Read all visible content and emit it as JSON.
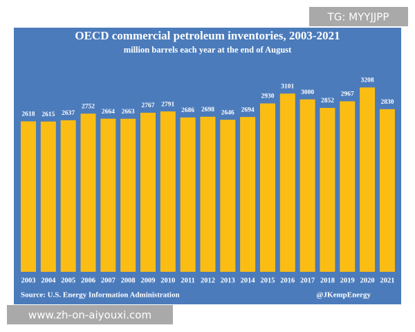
{
  "chart_data": {
    "type": "bar",
    "title": "OECD commercial petroleum inventories, 2003-2021",
    "subtitle": "million barrels each year at the end of August",
    "categories": [
      "2003",
      "2004",
      "2005",
      "2006",
      "2007",
      "2008",
      "2009",
      "2010",
      "2011",
      "2012",
      "2013",
      "2014",
      "2015",
      "2016",
      "2017",
      "2018",
      "2019",
      "2020",
      "2021"
    ],
    "values": [
      2618,
      2615,
      2637,
      2752,
      2664,
      2663,
      2767,
      2791,
      2686,
      2698,
      2646,
      2694,
      2930,
      3101,
      3000,
      2852,
      2967,
      3208,
      2830
    ],
    "color": "#fbbd14",
    "source": "Source: U.S. Energy Information Administration",
    "credit": "@JKempEnergy"
  },
  "watermarks": [
    "TG: MYYJJPP",
    "www.zh-on-aiyouxi.com"
  ]
}
